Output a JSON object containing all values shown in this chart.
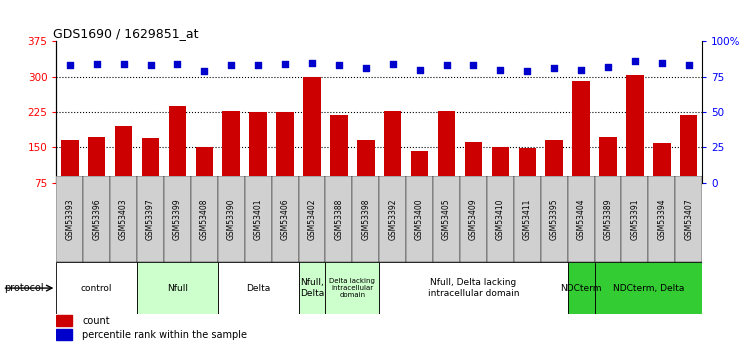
{
  "title": "GDS1690 / 1629851_at",
  "samples": [
    "GSM53393",
    "GSM53396",
    "GSM53403",
    "GSM53397",
    "GSM53399",
    "GSM53408",
    "GSM53390",
    "GSM53401",
    "GSM53406",
    "GSM53402",
    "GSM53388",
    "GSM53398",
    "GSM53392",
    "GSM53400",
    "GSM53405",
    "GSM53409",
    "GSM53410",
    "GSM53411",
    "GSM53395",
    "GSM53404",
    "GSM53389",
    "GSM53391",
    "GSM53394",
    "GSM53407"
  ],
  "counts": [
    165,
    172,
    195,
    170,
    237,
    152,
    228,
    226,
    226,
    300,
    218,
    165,
    228,
    143,
    228,
    162,
    152,
    148,
    165,
    290,
    173,
    303,
    160,
    218
  ],
  "percentiles": [
    83,
    84,
    84,
    83,
    84,
    79,
    83,
    83,
    84,
    85,
    83,
    81,
    84,
    80,
    83,
    83,
    80,
    79,
    81,
    80,
    82,
    86,
    85,
    83
  ],
  "bar_color": "#cc0000",
  "dot_color": "#0000cc",
  "ylim_left": [
    75,
    375
  ],
  "ylim_right": [
    0,
    100
  ],
  "yticks_left": [
    75,
    150,
    225,
    300,
    375
  ],
  "yticks_right": [
    0,
    25,
    50,
    75,
    100
  ],
  "groups": [
    {
      "label": "control",
      "start": 0,
      "end": 3,
      "color": "#ffffff",
      "light": true
    },
    {
      "label": "Nfull",
      "start": 3,
      "end": 6,
      "color": "#ccffcc",
      "light": true
    },
    {
      "label": "Delta",
      "start": 6,
      "end": 9,
      "color": "#ffffff",
      "light": true
    },
    {
      "label": "Nfull,\nDelta",
      "start": 9,
      "end": 10,
      "color": "#ccffcc",
      "light": true
    },
    {
      "label": "Delta lacking\nintracellular\ndomain",
      "start": 10,
      "end": 12,
      "color": "#ccffcc",
      "light": true
    },
    {
      "label": "Nfull, Delta lacking\nintracellular domain",
      "start": 12,
      "end": 19,
      "color": "#ffffff",
      "light": true
    },
    {
      "label": "NDCterm",
      "start": 19,
      "end": 20,
      "color": "#33cc33",
      "light": false
    },
    {
      "label": "NDCterm, Delta",
      "start": 20,
      "end": 24,
      "color": "#33cc33",
      "light": false
    }
  ],
  "background_color": "#ffffff"
}
